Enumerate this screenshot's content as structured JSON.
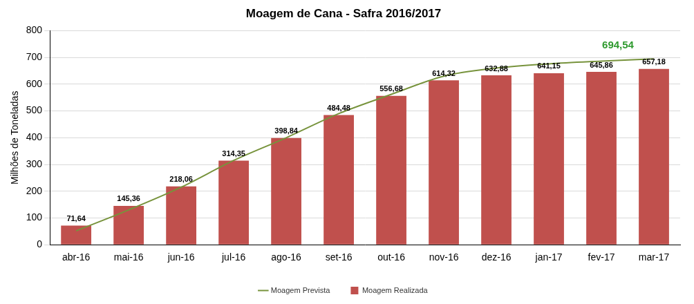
{
  "chart_data": {
    "type": "bar",
    "title": "Moagem de Cana - Safra 2016/2017",
    "y_label": "Milhões de Toneladas",
    "categories": [
      "abr-16",
      "mai-16",
      "jun-16",
      "jul-16",
      "ago-16",
      "set-16",
      "out-16",
      "nov-16",
      "dez-16",
      "jan-17",
      "fev-17",
      "mar-17"
    ],
    "series": [
      {
        "name": "Moagem Realizada",
        "type": "bar",
        "color": "#c0504d",
        "values": [
          71.64,
          145.36,
          218.06,
          314.35,
          398.84,
          484.48,
          556.68,
          614.32,
          632.88,
          641.15,
          645.86,
          657.18
        ],
        "value_labels": [
          "71,64",
          "145,36",
          "218,06",
          "314,35",
          "398,84",
          "484,48",
          "556,68",
          "614,32",
          "632,88",
          "641,15",
          "645,86",
          "657,18"
        ],
        "data_labels": true
      },
      {
        "name": "Moagem Prevista",
        "type": "line",
        "color": "#77933c",
        "values": [
          52,
          130,
          215,
          315,
          400,
          490,
          562,
          630,
          660,
          676,
          686,
          694.54
        ],
        "value_labels": [
          null,
          null,
          null,
          null,
          null,
          null,
          null,
          null,
          null,
          null,
          null,
          "694,54"
        ],
        "data_labels": true
      }
    ],
    "ylim": [
      0,
      800
    ],
    "yticks": [
      0,
      100,
      200,
      300,
      400,
      500,
      600,
      700,
      800
    ],
    "grid": true,
    "legend": "bottom"
  }
}
